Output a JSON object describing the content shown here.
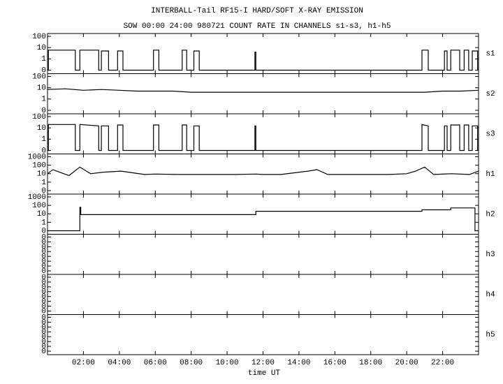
{
  "title": "INTERBALL-Tail RF15-I HARD/SOFT X-RAY EMISSION",
  "subtitle": "SOW 00:00 24:00 980721  COUNT RATE IN CHANNELS s1-s3, h1-h5",
  "time_axis": {
    "xlabel": "time UT",
    "xlim": [
      0,
      24
    ],
    "xticks": [
      {
        "value": 2,
        "label": "02:00"
      },
      {
        "value": 4,
        "label": "04:00"
      },
      {
        "value": 6,
        "label": "06:00"
      },
      {
        "value": 8,
        "label": "08:00"
      },
      {
        "value": 10,
        "label": "10:00"
      },
      {
        "value": 12,
        "label": "12:00"
      },
      {
        "value": 14,
        "label": "14:00"
      },
      {
        "value": 16,
        "label": "16:00"
      },
      {
        "value": 18,
        "label": "18:00"
      },
      {
        "value": 20,
        "label": "20:00"
      },
      {
        "value": 22,
        "label": "22:00"
      }
    ]
  },
  "chart_data": [
    {
      "type": "line",
      "panel_label": "s1",
      "log_scale": true,
      "color": "#000000",
      "ylim": [
        0.1,
        100
      ],
      "yticks": [
        100,
        10,
        1,
        {
          "value": 0.1,
          "label": "0"
        }
      ],
      "x": [
        0,
        0.05,
        0.05,
        1.55,
        1.55,
        1.8,
        1.8,
        2.85,
        2.85,
        3.0,
        3.0,
        3.4,
        3.4,
        3.9,
        3.9,
        4.2,
        4.2,
        5.9,
        5.9,
        6.2,
        6.2,
        7.5,
        7.5,
        7.75,
        7.75,
        8.15,
        8.15,
        8.45,
        8.45,
        11.55,
        11.55,
        11.6,
        11.6,
        20.85,
        20.85,
        21.2,
        21.2,
        22.1,
        22.1,
        22.25,
        22.25,
        22.45,
        22.45,
        22.95,
        22.95,
        23.2,
        23.2,
        23.45,
        23.45,
        23.65,
        23.65,
        23.95,
        23.95,
        24
      ],
      "values": [
        0.1,
        0.1,
        6,
        6,
        0.1,
        0.1,
        6,
        6,
        0.1,
        0.1,
        5,
        5,
        0.1,
        0.1,
        5,
        5,
        0.1,
        0.1,
        6,
        6,
        0.1,
        0.1,
        6,
        6,
        0.1,
        0.1,
        5,
        5,
        0.1,
        0.1,
        4,
        4,
        0.1,
        0.1,
        6,
        6,
        0.1,
        0.1,
        5,
        5,
        0.1,
        0.1,
        6,
        6,
        0.1,
        0.1,
        6,
        6,
        0.1,
        0.1,
        5,
        5,
        0.1,
        0.1
      ]
    },
    {
      "type": "line",
      "panel_label": "s2",
      "log_scale": true,
      "color": "#000000",
      "ylim": [
        0.1,
        100
      ],
      "yticks": [
        100,
        10,
        1,
        {
          "value": 0.1,
          "label": "0"
        }
      ],
      "x": [
        0,
        1,
        2,
        3,
        4,
        5,
        6,
        7,
        8,
        9,
        10,
        11,
        12,
        13,
        14,
        15,
        16,
        17,
        18,
        19,
        20,
        21,
        22,
        23,
        24
      ],
      "values": [
        7,
        8,
        6,
        7,
        6,
        5,
        5,
        5,
        4,
        4,
        4,
        4,
        4,
        4,
        4,
        4,
        4,
        4,
        4,
        4,
        4,
        4,
        5,
        5,
        6
      ]
    },
    {
      "type": "line",
      "panel_label": "s3",
      "log_scale": true,
      "color": "#000000",
      "ylim": [
        0.1,
        100
      ],
      "yticks": [
        100,
        10,
        1,
        {
          "value": 0.1,
          "label": "0"
        }
      ],
      "x": [
        0,
        0.05,
        0.05,
        1.55,
        1.55,
        1.8,
        1.8,
        2.85,
        2.85,
        3.0,
        3.0,
        3.4,
        3.4,
        3.9,
        3.9,
        4.2,
        4.2,
        5.9,
        5.9,
        6.2,
        6.2,
        7.5,
        7.5,
        7.75,
        7.75,
        8.15,
        8.15,
        8.45,
        8.45,
        11.55,
        11.55,
        11.6,
        11.6,
        20.85,
        20.85,
        21.2,
        21.2,
        22.1,
        22.1,
        22.25,
        22.25,
        22.45,
        22.45,
        22.95,
        22.95,
        23.2,
        23.2,
        23.45,
        23.45,
        23.65,
        23.65,
        23.95,
        23.95,
        24
      ],
      "values": [
        0.1,
        0.1,
        20,
        20,
        0.1,
        0.1,
        20,
        15,
        0.1,
        0.1,
        15,
        15,
        0.1,
        0.1,
        18,
        18,
        0.1,
        0.1,
        18,
        18,
        0.1,
        0.1,
        18,
        18,
        0.1,
        0.1,
        15,
        15,
        0.1,
        0.1,
        15,
        15,
        0.1,
        0.1,
        20,
        15,
        0.1,
        0.1,
        15,
        15,
        0.1,
        0.1,
        18,
        18,
        0.1,
        0.1,
        18,
        18,
        0.1,
        0.1,
        15,
        15,
        0.1,
        0.1
      ]
    },
    {
      "type": "line",
      "panel_label": "h1",
      "log_scale": true,
      "color": "#000000",
      "ylim": [
        0.1,
        1000
      ],
      "yticks": [
        1000,
        100,
        10,
        1,
        {
          "value": 0.1,
          "label": "0"
        }
      ],
      "x": [
        0,
        0.3,
        0.8,
        1.2,
        1.8,
        2.4,
        3.1,
        4.1,
        5.4,
        6.0,
        7.4,
        9.0,
        10.5,
        11.6,
        12.0,
        13.0,
        14.5,
        15.0,
        15.6,
        17.0,
        19.0,
        20.0,
        20.5,
        21.0,
        21.5,
        22.5,
        23.5,
        24
      ],
      "values": [
        10,
        30,
        12,
        6,
        60,
        10,
        15,
        20,
        8,
        9,
        8,
        8,
        8,
        9,
        8,
        8,
        20,
        30,
        8,
        8,
        8,
        10,
        20,
        60,
        8,
        10,
        8,
        20
      ]
    },
    {
      "type": "line",
      "panel_label": "h2",
      "log_scale": true,
      "color": "#000000",
      "ylim": [
        0.1,
        1000
      ],
      "yticks": [
        1000,
        100,
        10,
        1,
        {
          "value": 0.1,
          "label": "0"
        }
      ],
      "x": [
        0,
        1.8,
        1.8,
        1.85,
        1.85,
        11.6,
        11.6,
        20.85,
        20.85,
        22.45,
        22.45,
        23.8,
        23.8,
        24
      ],
      "values": [
        0.1,
        0.1,
        60,
        60,
        8,
        8,
        20,
        20,
        30,
        30,
        50,
        50,
        0.1,
        0.1
      ]
    },
    {
      "type": "empty",
      "panel_label": "h3",
      "ylim": [
        0,
        7
      ],
      "yticks": [
        0,
        {
          "value": 1,
          "label": "0"
        },
        {
          "value": 2,
          "label": "0"
        },
        {
          "value": 3,
          "label": "0"
        },
        {
          "value": 4,
          "label": "0"
        },
        {
          "value": 5,
          "label": "0"
        },
        {
          "value": 6,
          "label": "0"
        },
        {
          "value": 7,
          "label": "0"
        }
      ]
    },
    {
      "type": "empty",
      "panel_label": "h4",
      "ylim": [
        0,
        7
      ],
      "yticks": [
        0,
        {
          "value": 1,
          "label": "0"
        },
        {
          "value": 2,
          "label": "0"
        },
        {
          "value": 3,
          "label": "0"
        },
        {
          "value": 4,
          "label": "0"
        },
        {
          "value": 5,
          "label": "0"
        },
        {
          "value": 6,
          "label": "0"
        },
        {
          "value": 7,
          "label": "0"
        }
      ]
    },
    {
      "type": "empty",
      "panel_label": "h5",
      "ylim": [
        0,
        7
      ],
      "yticks": [
        0,
        {
          "value": 1,
          "label": "0"
        },
        {
          "value": 2,
          "label": "0"
        },
        {
          "value": 3,
          "label": "0"
        },
        {
          "value": 4,
          "label": "0"
        },
        {
          "value": 5,
          "label": "0"
        },
        {
          "value": 6,
          "label": "0"
        },
        {
          "value": 7,
          "label": "0"
        }
      ]
    }
  ]
}
